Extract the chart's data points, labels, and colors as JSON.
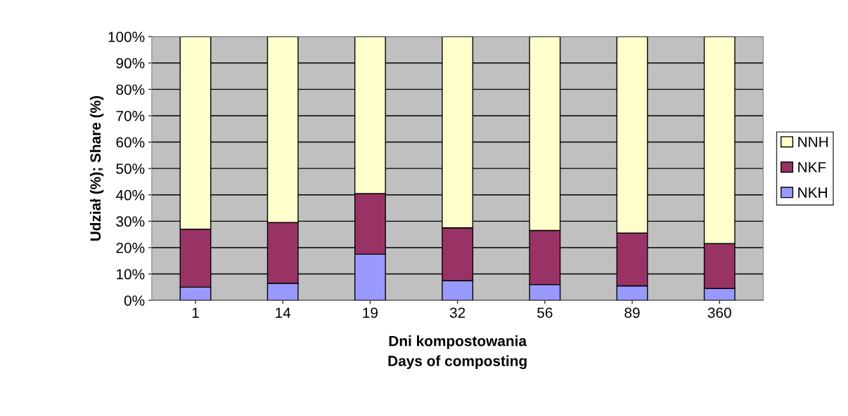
{
  "chart_data": {
    "type": "bar",
    "stacked": true,
    "categories": [
      "1",
      "14",
      "19",
      "32",
      "56",
      "89",
      "360"
    ],
    "series": [
      {
        "name": "NKH",
        "color": "#9999ff",
        "values": [
          5,
          6.5,
          17.5,
          7.5,
          6,
          5.5,
          4.5
        ]
      },
      {
        "name": "NKF",
        "color": "#993366",
        "values": [
          22,
          23,
          23,
          20,
          20.5,
          20,
          17
        ]
      },
      {
        "name": "NNH",
        "color": "#ffffcc",
        "values": [
          73,
          70.5,
          59.5,
          72.5,
          73.5,
          74.5,
          78.5
        ]
      }
    ],
    "xlabel": "Dni kompostowania\nDays of composting",
    "ylabel": "Udział (%); Share (%)",
    "ylim": [
      0,
      100
    ],
    "yticks": [
      {
        "value": 0,
        "label": "0%"
      },
      {
        "value": 10,
        "label": "10%"
      },
      {
        "value": 20,
        "label": "20%"
      },
      {
        "value": 30,
        "label": "30%"
      },
      {
        "value": 40,
        "label": "40%"
      },
      {
        "value": 50,
        "label": "50%"
      },
      {
        "value": 60,
        "label": "60%"
      },
      {
        "value": 70,
        "label": "70%"
      },
      {
        "value": 80,
        "label": "80%"
      },
      {
        "value": 90,
        "label": "90%"
      },
      {
        "value": 100,
        "label": "100%"
      }
    ],
    "grid": "y",
    "legend": "right"
  }
}
